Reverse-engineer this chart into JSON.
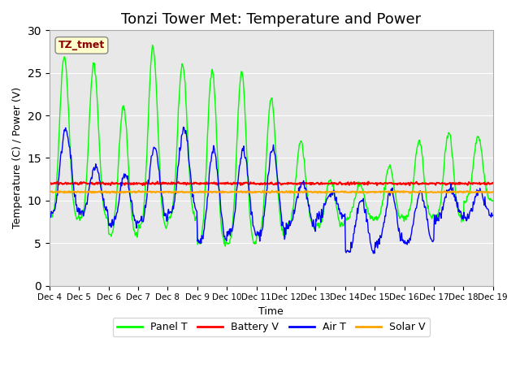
{
  "title": "Tonzi Tower Met: Temperature and Power",
  "ylabel": "Temperature (C) / Power (V)",
  "xlabel": "Time",
  "annotation": "TZ_tmet",
  "ylim": [
    0,
    30
  ],
  "yticks": [
    0,
    5,
    10,
    15,
    20,
    25,
    30
  ],
  "x_tick_labels": [
    "Dec 4",
    "Dec 5",
    "Dec 6",
    "Dec 7",
    "Dec 8",
    "Dec 9",
    "Dec 10",
    "Dec 11",
    "Dec 12",
    "Dec 13",
    "Dec 14",
    "Dec 15",
    "Dec 16",
    "Dec 17",
    "Dec 18",
    "Dec 19"
  ],
  "panel_color": "#00ff00",
  "battery_color": "#ff0000",
  "air_color": "#0000ff",
  "solar_color": "#ffa500",
  "bg_color": "#e8e8e8",
  "title_fontsize": 13,
  "legend_labels": [
    "Panel T",
    "Battery V",
    "Air T",
    "Solar V"
  ]
}
